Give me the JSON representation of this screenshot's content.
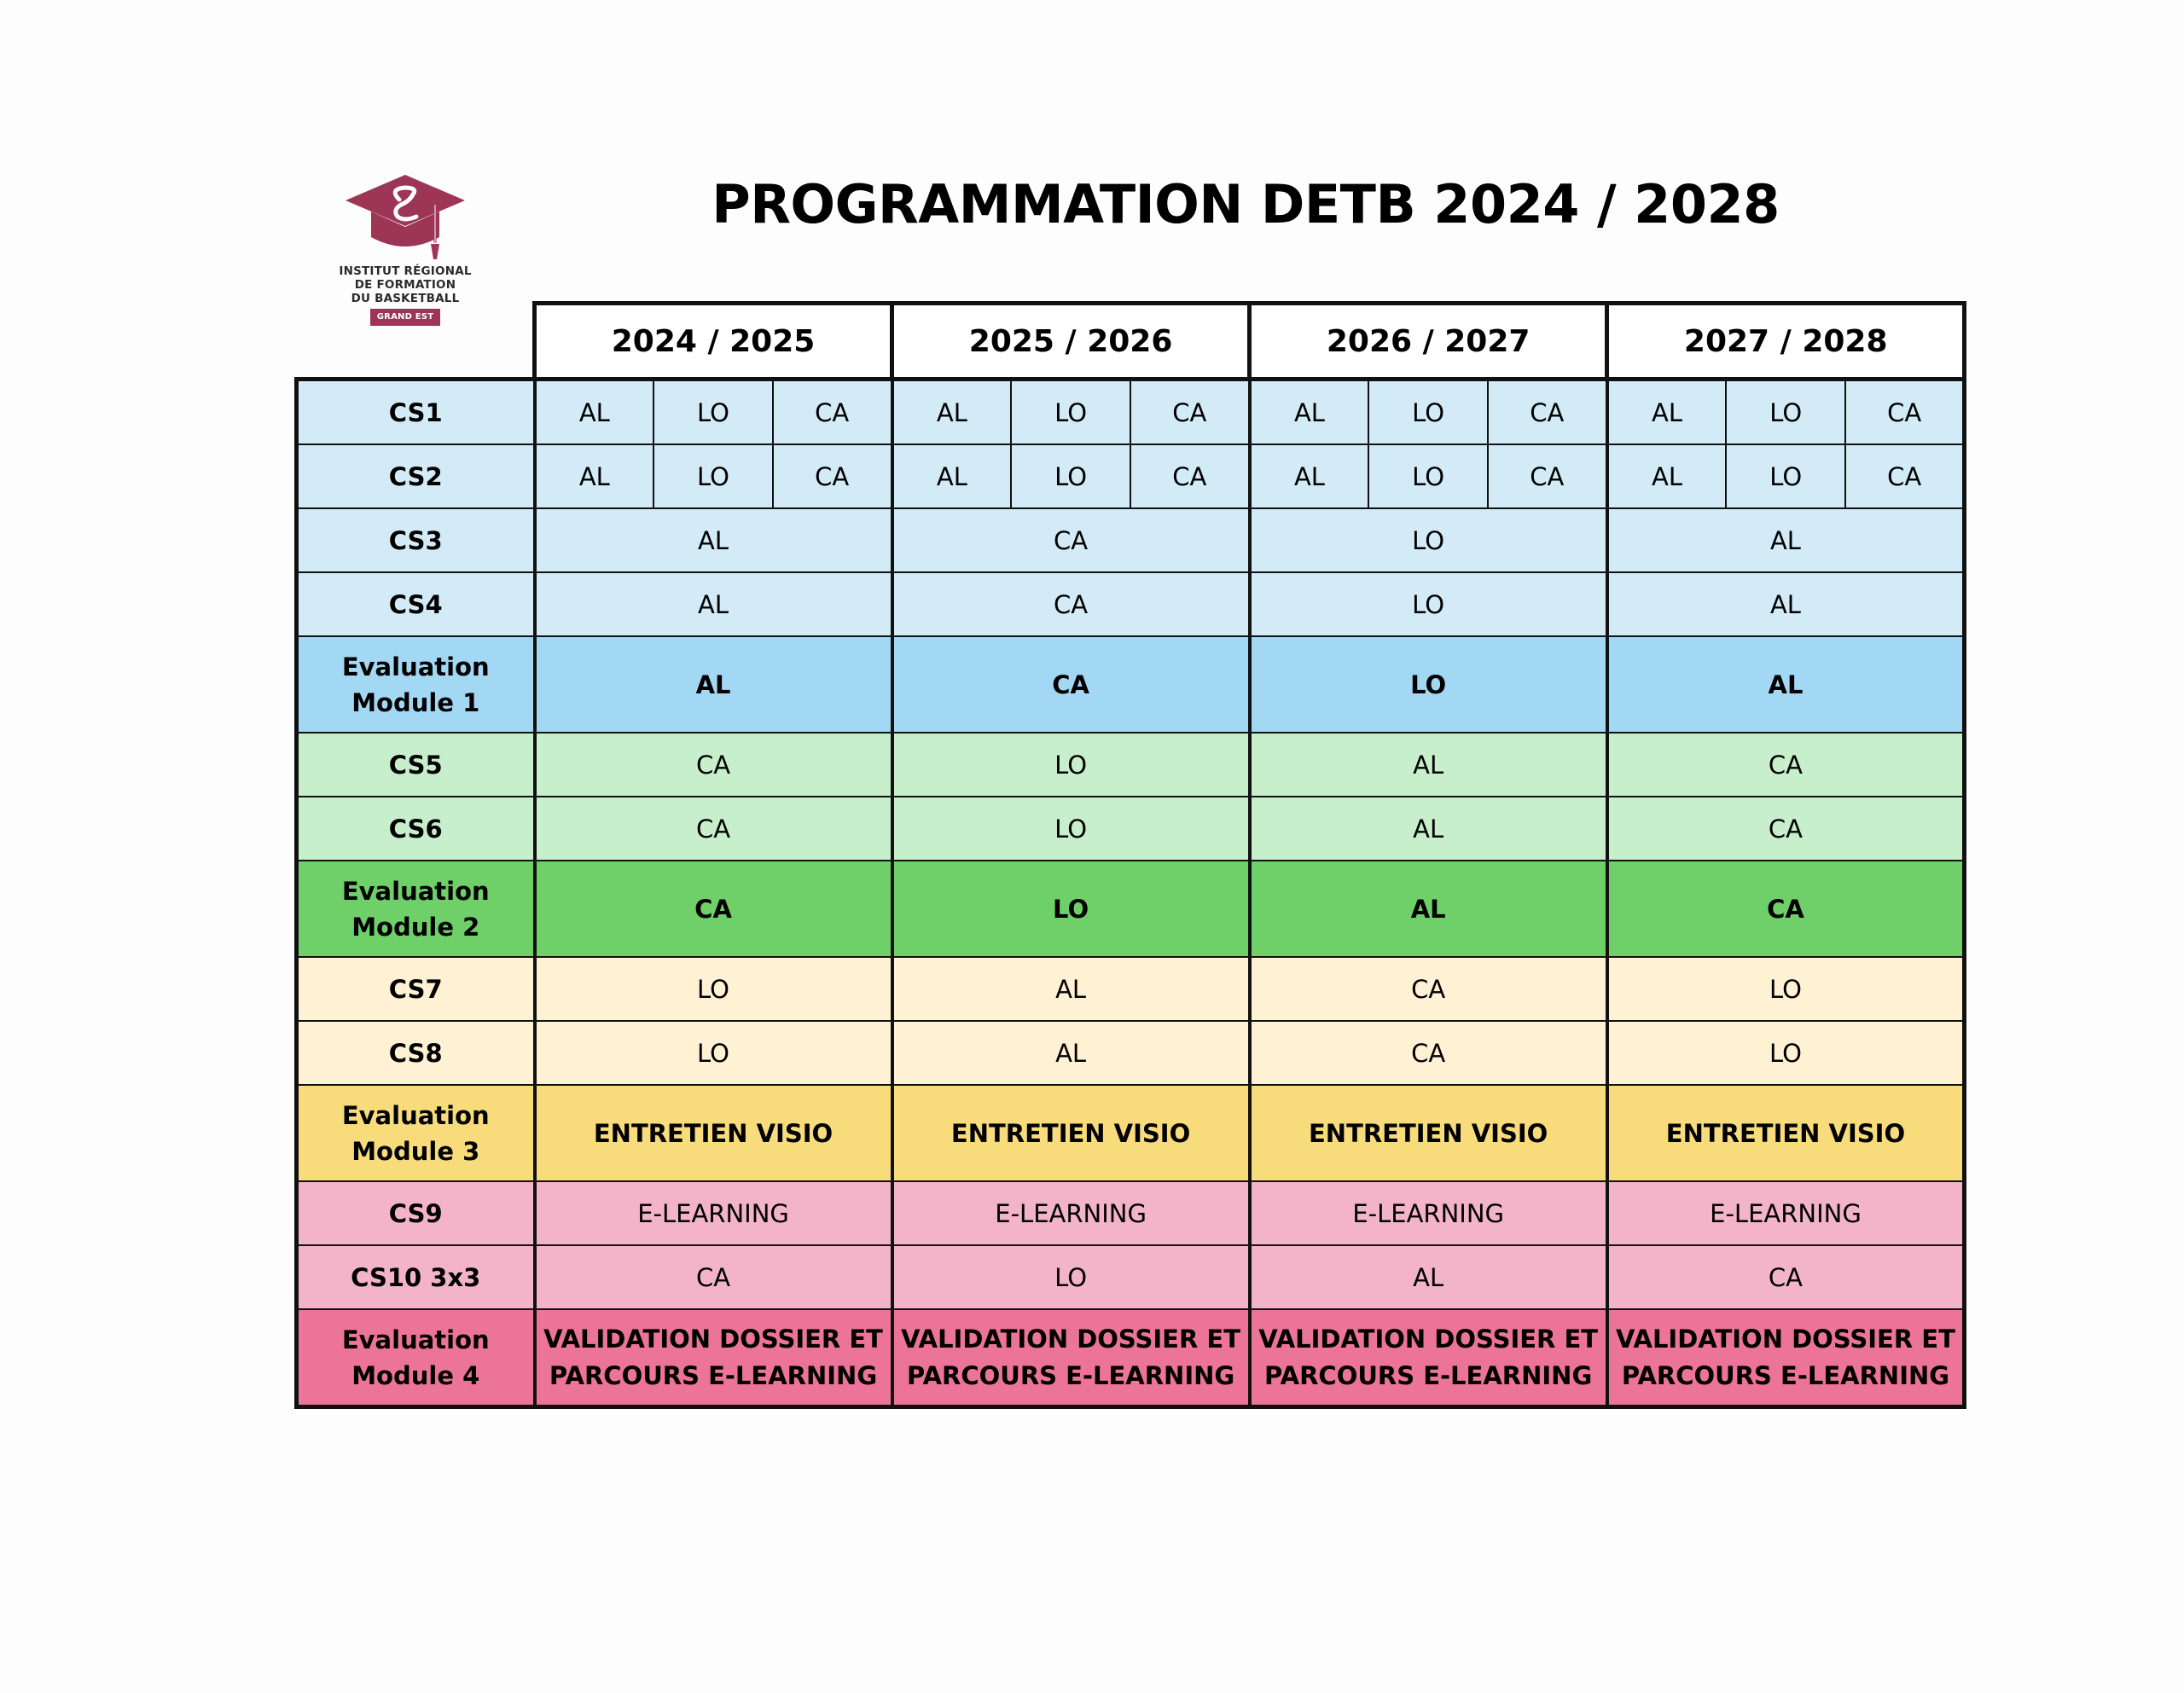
{
  "logo": {
    "line1": "INSTITUT RÉGIONAL",
    "line2": "DE FORMATION",
    "line3": "DU BASKETBALL",
    "badge": "GRAND EST",
    "color": "#9c3556"
  },
  "title": "PROGRAMMATION DETB 2024 / 2028",
  "years": [
    "2024 / 2025",
    "2025 / 2026",
    "2026 / 2027",
    "2027 / 2028"
  ],
  "rows": {
    "cs1": {
      "label": "CS1",
      "cells": [
        "AL",
        "LO",
        "CA",
        "AL",
        "LO",
        "CA",
        "AL",
        "LO",
        "CA",
        "AL",
        "LO",
        "CA"
      ]
    },
    "cs2": {
      "label": "CS2",
      "cells": [
        "AL",
        "LO",
        "CA",
        "AL",
        "LO",
        "CA",
        "AL",
        "LO",
        "CA",
        "AL",
        "LO",
        "CA"
      ]
    },
    "cs3": {
      "label": "CS3",
      "cells": [
        "AL",
        "CA",
        "LO",
        "AL"
      ]
    },
    "cs4": {
      "label": "CS4",
      "cells": [
        "AL",
        "CA",
        "LO",
        "AL"
      ]
    },
    "eval1": {
      "label1": "Evaluation",
      "label2": "Module 1",
      "cells": [
        "AL",
        "CA",
        "LO",
        "AL"
      ]
    },
    "cs5": {
      "label": "CS5",
      "cells": [
        "CA",
        "LO",
        "AL",
        "CA"
      ]
    },
    "cs6": {
      "label": "CS6",
      "cells": [
        "CA",
        "LO",
        "AL",
        "CA"
      ]
    },
    "eval2": {
      "label1": "Evaluation",
      "label2": "Module 2",
      "cells": [
        "CA",
        "LO",
        "AL",
        "CA"
      ]
    },
    "cs7": {
      "label": "CS7",
      "cells": [
        "LO",
        "AL",
        "CA",
        "LO"
      ]
    },
    "cs8": {
      "label": "CS8",
      "cells": [
        "LO",
        "AL",
        "CA",
        "LO"
      ]
    },
    "eval3": {
      "label1": "Evaluation",
      "label2": "Module 3",
      "cells": [
        "ENTRETIEN VISIO",
        "ENTRETIEN VISIO",
        "ENTRETIEN VISIO",
        "ENTRETIEN VISIO"
      ]
    },
    "cs9": {
      "label": "CS9",
      "cells": [
        "E-LEARNING",
        "E-LEARNING",
        "E-LEARNING",
        "E-LEARNING"
      ]
    },
    "cs10": {
      "label": "CS10 3x3",
      "cells": [
        "CA",
        "LO",
        "AL",
        "CA"
      ]
    },
    "eval4": {
      "label1": "Evaluation",
      "label2": "Module 4",
      "cells": [
        {
          "l1": "VALIDATION DOSSIER ET",
          "l2": "PARCOURS E-LEARNING"
        },
        {
          "l1": "VALIDATION DOSSIER ET",
          "l2": "PARCOURS E-LEARNING"
        },
        {
          "l1": "VALIDATION DOSSIER ET",
          "l2": "PARCOURS E-LEARNING"
        },
        {
          "l1": "VALIDATION DOSSIER ET",
          "l2": "PARCOURS E-LEARNING"
        }
      ]
    }
  },
  "colors": {
    "module1_light": "#d2ebf7",
    "module1_eval": "#a3d8f4",
    "module2_light": "#c8efcc",
    "module2_eval": "#6fcf68",
    "module3_light": "#fff1d4",
    "module3_eval": "#f8dc7c",
    "module4_light": "#f3b4c9",
    "module4_eval": "#ec7399"
  }
}
